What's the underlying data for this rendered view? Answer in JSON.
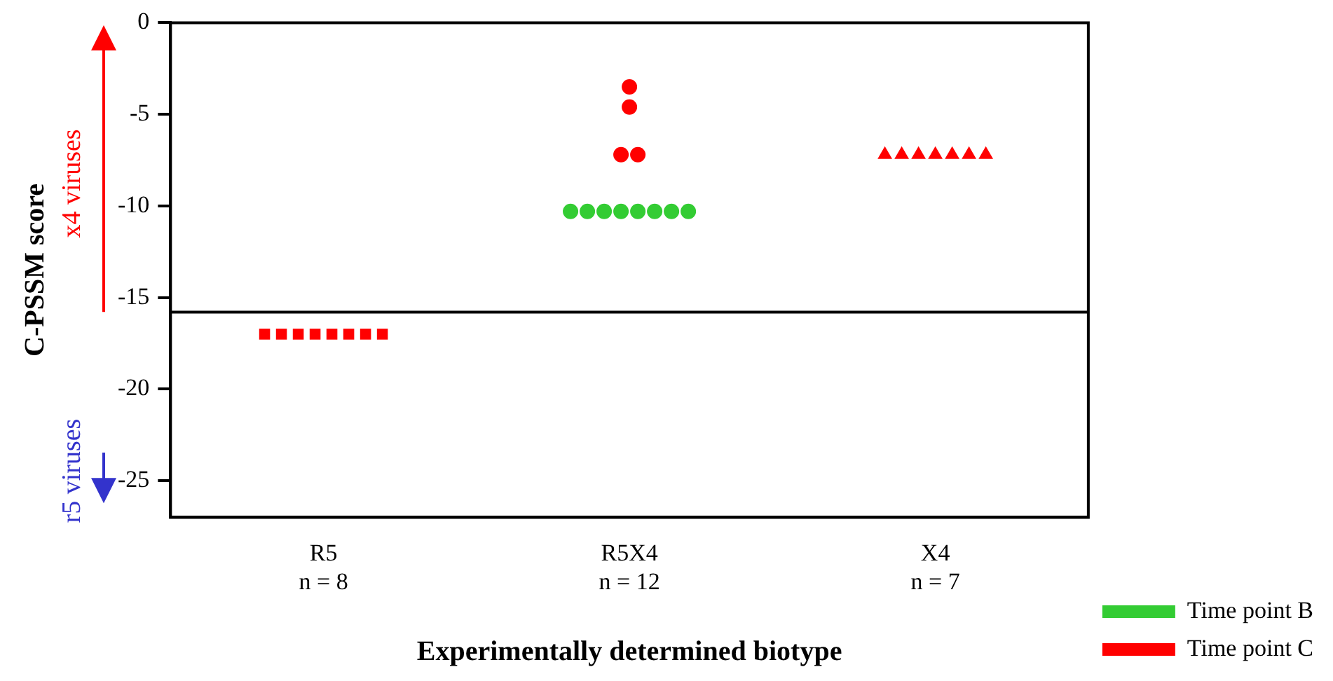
{
  "chart_data": {
    "type": "scatter",
    "xlabel": "Experimentally determined biotype",
    "ylabel": "C-PSSM score",
    "categories": [
      "R5\nn = 8",
      "R5X4\nn = 12",
      "X4\nn = 7"
    ],
    "series": [
      {
        "name": "Time point B",
        "color": "#33cc33",
        "marker": "circle",
        "x": [
          "R5X4\nn = 12",
          "R5X4\nn = 12",
          "R5X4\nn = 12",
          "R5X4\nn = 12",
          "R5X4\nn = 12",
          "R5X4\nn = 12",
          "R5X4\nn = 12",
          "R5X4\nn = 12"
        ],
        "values": [
          -10.3,
          -10.3,
          -10.3,
          -10.3,
          -10.3,
          -10.3,
          -10.3,
          -10.3
        ]
      },
      {
        "name": "Time point C",
        "color": "#ff0000",
        "marker": "square",
        "x": [
          "R5\nn = 8",
          "R5\nn = 8",
          "R5\nn = 8",
          "R5\nn = 8",
          "R5\nn = 8",
          "R5\nn = 8",
          "R5\nn = 8",
          "R5\nn = 8"
        ],
        "values": [
          -17,
          -17,
          -17,
          -17,
          -17,
          -17,
          -17,
          -17
        ]
      },
      {
        "color": "#ff0000",
        "marker": "circle",
        "x": [
          "R5X4\nn = 12",
          "R5X4\nn = 12",
          "R5X4\nn = 12",
          "R5X4\nn = 12"
        ],
        "values": [
          -3.5,
          -4.6,
          -7.2,
          -7.2
        ]
      },
      {
        "color": "#ff0000",
        "marker": "triangle",
        "x": [
          "X4\nn = 7",
          "X4\nn = 7",
          "X4\nn = 7",
          "X4\nn = 7",
          "X4\nn = 7",
          "X4\nn = 7",
          "X4\nn = 7"
        ],
        "values": [
          -7.2,
          -7.2,
          -7.2,
          -7.2,
          -7.2,
          -7.2,
          -7.2
        ]
      }
    ],
    "ylim": [
      -27,
      0
    ],
    "yticks": [
      0,
      -5,
      -10,
      -15,
      -20,
      -25
    ],
    "ref_lines": [
      {
        "axis": "y",
        "value": -15.8,
        "color": "#000000"
      }
    ],
    "annotations": [
      "x4 viruses",
      "r5 viruses"
    ],
    "legend": "bottom right",
    "grid": false
  }
}
